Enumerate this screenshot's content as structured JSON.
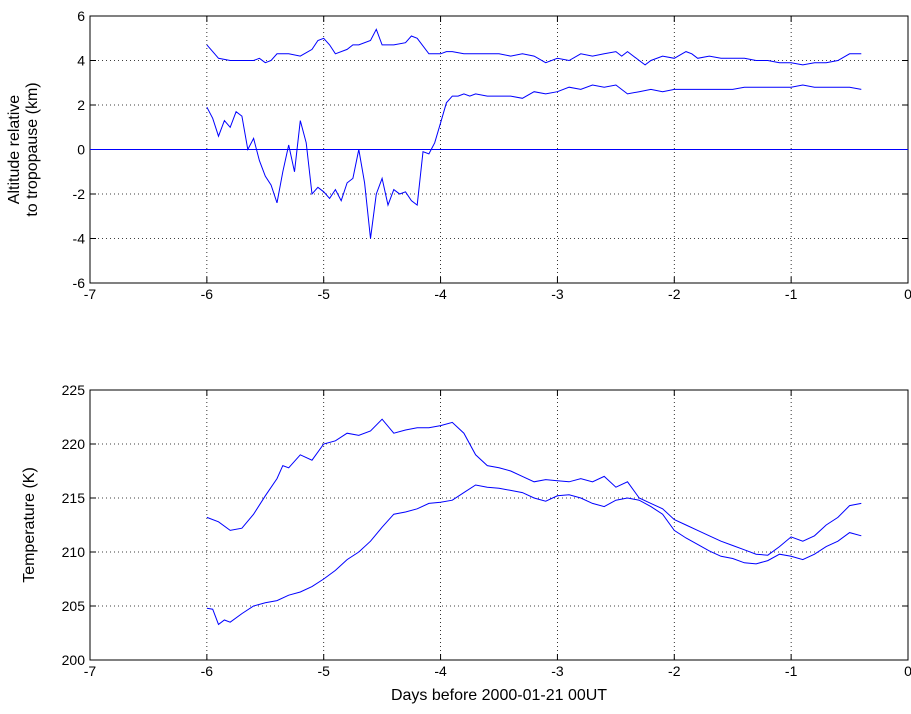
{
  "chart_data": [
    {
      "type": "line",
      "title": "",
      "xlabel": "",
      "ylabel": [
        "Altitude relative",
        "to tropopause (km)"
      ],
      "xlim": [
        -7,
        0
      ],
      "ylim": [
        -6,
        6
      ],
      "xticks": [
        -7,
        -6,
        -5,
        -4,
        -3,
        -2,
        -1,
        0
      ],
      "yticks": [
        -6,
        -4,
        -2,
        0,
        2,
        4,
        6
      ],
      "xtick_labels": [
        "-7",
        "-6",
        "-5",
        "-4",
        "-3",
        "-2",
        "-1",
        "0"
      ],
      "ytick_labels": [
        "-6",
        "-4",
        "-2",
        "0",
        "2",
        "4",
        "6"
      ],
      "grid": true,
      "line_color": "#0000ff",
      "series": [
        {
          "x": [
            -6.0,
            -5.95,
            -5.9,
            -5.8,
            -5.7,
            -5.6,
            -5.55,
            -5.5,
            -5.45,
            -5.4,
            -5.3,
            -5.2,
            -5.1,
            -5.05,
            -5.0,
            -4.95,
            -4.9,
            -4.8,
            -4.75,
            -4.7,
            -4.6,
            -4.55,
            -4.5,
            -4.45,
            -4.4,
            -4.3,
            -4.25,
            -4.2,
            -4.1,
            -4.0,
            -3.95,
            -3.9,
            -3.8,
            -3.7,
            -3.6,
            -3.5,
            -3.4,
            -3.3,
            -3.2,
            -3.1,
            -3.0,
            -2.9,
            -2.8,
            -2.7,
            -2.6,
            -2.5,
            -2.45,
            -2.4,
            -2.3,
            -2.25,
            -2.2,
            -2.1,
            -2.0,
            -1.9,
            -1.85,
            -1.8,
            -1.7,
            -1.6,
            -1.5,
            -1.4,
            -1.3,
            -1.2,
            -1.1,
            -1.0,
            -0.9,
            -0.8,
            -0.7,
            -0.6,
            -0.5,
            -0.45,
            -0.4
          ],
          "y": [
            4.7,
            4.4,
            4.1,
            4.0,
            4.0,
            4.0,
            4.1,
            3.9,
            4.0,
            4.3,
            4.3,
            4.2,
            4.5,
            4.9,
            5.0,
            4.7,
            4.3,
            4.5,
            4.7,
            4.7,
            4.9,
            5.4,
            4.7,
            4.7,
            4.7,
            4.8,
            5.1,
            5.0,
            4.3,
            4.3,
            4.4,
            4.4,
            4.3,
            4.3,
            4.3,
            4.3,
            4.2,
            4.3,
            4.2,
            3.9,
            4.1,
            4.0,
            4.3,
            4.2,
            4.3,
            4.4,
            4.2,
            4.4,
            4.0,
            3.8,
            4.0,
            4.2,
            4.1,
            4.4,
            4.3,
            4.1,
            4.2,
            4.1,
            4.1,
            4.1,
            4.0,
            4.0,
            3.9,
            3.9,
            3.8,
            3.9,
            3.9,
            4.0,
            4.3,
            4.3,
            4.3
          ]
        },
        {
          "x": [
            -6.0,
            -5.95,
            -5.9,
            -5.85,
            -5.8,
            -5.75,
            -5.7,
            -5.65,
            -5.6,
            -5.55,
            -5.5,
            -5.45,
            -5.4,
            -5.35,
            -5.3,
            -5.25,
            -5.2,
            -5.15,
            -5.1,
            -5.05,
            -5.0,
            -4.95,
            -4.9,
            -4.85,
            -4.8,
            -4.75,
            -4.7,
            -4.65,
            -4.6,
            -4.55,
            -4.5,
            -4.45,
            -4.4,
            -4.35,
            -4.3,
            -4.25,
            -4.2,
            -4.15,
            -4.1,
            -4.05,
            -4.0,
            -3.95,
            -3.9,
            -3.85,
            -3.8,
            -3.75,
            -3.7,
            -3.6,
            -3.5,
            -3.4,
            -3.3,
            -3.2,
            -3.1,
            -3.0,
            -2.9,
            -2.8,
            -2.7,
            -2.6,
            -2.5,
            -2.4,
            -2.3,
            -2.2,
            -2.1,
            -2.0,
            -1.9,
            -1.8,
            -1.7,
            -1.6,
            -1.5,
            -1.4,
            -1.3,
            -1.2,
            -1.1,
            -1.0,
            -0.9,
            -0.8,
            -0.7,
            -0.6,
            -0.5,
            -0.4
          ],
          "y": [
            1.9,
            1.4,
            0.6,
            1.3,
            1.0,
            1.7,
            1.5,
            0.0,
            0.5,
            -0.5,
            -1.2,
            -1.6,
            -2.4,
            -1.0,
            0.2,
            -1.0,
            1.3,
            0.3,
            -2.0,
            -1.7,
            -1.9,
            -2.2,
            -1.8,
            -2.3,
            -1.5,
            -1.3,
            0.0,
            -1.5,
            -4.0,
            -2.0,
            -1.3,
            -2.5,
            -1.8,
            -2.0,
            -1.9,
            -2.3,
            -2.5,
            -0.1,
            -0.2,
            0.3,
            1.2,
            2.1,
            2.4,
            2.4,
            2.5,
            2.4,
            2.5,
            2.4,
            2.4,
            2.4,
            2.3,
            2.6,
            2.5,
            2.6,
            2.8,
            2.7,
            2.9,
            2.8,
            2.9,
            2.5,
            2.6,
            2.7,
            2.6,
            2.7,
            2.7,
            2.7,
            2.7,
            2.7,
            2.7,
            2.8,
            2.8,
            2.8,
            2.8,
            2.8,
            2.9,
            2.8,
            2.8,
            2.8,
            2.8,
            2.7
          ]
        },
        {
          "x": [
            -7,
            0
          ],
          "y": [
            0,
            0
          ]
        }
      ]
    },
    {
      "type": "line",
      "title": "",
      "xlabel": "Days before 2000-01-21 00UT",
      "ylabel": [
        "Temperature (K)"
      ],
      "xlim": [
        -7,
        0
      ],
      "ylim": [
        200,
        225
      ],
      "xticks": [
        -7,
        -6,
        -5,
        -4,
        -3,
        -2,
        -1,
        0
      ],
      "yticks": [
        200,
        205,
        210,
        215,
        220,
        225
      ],
      "xtick_labels": [
        "-7",
        "-6",
        "-5",
        "-4",
        "-3",
        "-2",
        "-1",
        "0"
      ],
      "ytick_labels": [
        "200",
        "205",
        "210",
        "215",
        "220",
        "225"
      ],
      "grid": true,
      "line_color": "#0000ff",
      "series": [
        {
          "x": [
            -6.0,
            -5.9,
            -5.8,
            -5.7,
            -5.6,
            -5.5,
            -5.4,
            -5.35,
            -5.3,
            -5.2,
            -5.1,
            -5.0,
            -4.9,
            -4.8,
            -4.7,
            -4.6,
            -4.5,
            -4.4,
            -4.3,
            -4.2,
            -4.1,
            -4.0,
            -3.9,
            -3.8,
            -3.7,
            -3.6,
            -3.5,
            -3.4,
            -3.3,
            -3.2,
            -3.1,
            -3.0,
            -2.9,
            -2.8,
            -2.7,
            -2.6,
            -2.5,
            -2.4,
            -2.3,
            -2.2,
            -2.1,
            -2.0,
            -1.9,
            -1.8,
            -1.7,
            -1.6,
            -1.5,
            -1.4,
            -1.3,
            -1.2,
            -1.1,
            -1.0,
            -0.9,
            -0.8,
            -0.7,
            -0.6,
            -0.5,
            -0.4
          ],
          "y": [
            213.2,
            212.8,
            212.0,
            212.2,
            213.5,
            215.2,
            216.8,
            218.0,
            217.8,
            219.0,
            218.5,
            220.0,
            220.3,
            221.0,
            220.8,
            221.2,
            222.3,
            221.0,
            221.3,
            221.5,
            221.5,
            221.7,
            222.0,
            221.0,
            219.0,
            218.0,
            217.8,
            217.5,
            217.0,
            216.5,
            216.7,
            216.6,
            216.5,
            216.8,
            216.5,
            217.0,
            216.0,
            216.5,
            215.0,
            214.5,
            214.0,
            213.0,
            212.5,
            212.0,
            211.5,
            211.0,
            210.6,
            210.2,
            209.8,
            209.7,
            210.5,
            211.4,
            211.0,
            211.5,
            212.5,
            213.2,
            214.3,
            214.5
          ]
        },
        {
          "x": [
            -6.0,
            -5.95,
            -5.9,
            -5.85,
            -5.8,
            -5.7,
            -5.6,
            -5.5,
            -5.4,
            -5.3,
            -5.2,
            -5.1,
            -5.0,
            -4.9,
            -4.8,
            -4.7,
            -4.6,
            -4.5,
            -4.4,
            -4.3,
            -4.2,
            -4.1,
            -4.0,
            -3.9,
            -3.8,
            -3.7,
            -3.6,
            -3.5,
            -3.4,
            -3.3,
            -3.2,
            -3.1,
            -3.0,
            -2.9,
            -2.8,
            -2.7,
            -2.6,
            -2.5,
            -2.4,
            -2.3,
            -2.2,
            -2.1,
            -2.0,
            -1.9,
            -1.8,
            -1.7,
            -1.6,
            -1.5,
            -1.4,
            -1.3,
            -1.2,
            -1.1,
            -1.0,
            -0.9,
            -0.8,
            -0.7,
            -0.6,
            -0.5,
            -0.4
          ],
          "y": [
            204.8,
            204.7,
            203.3,
            203.7,
            203.5,
            204.3,
            205.0,
            205.3,
            205.5,
            206.0,
            206.3,
            206.8,
            207.5,
            208.3,
            209.3,
            210.0,
            211.0,
            212.3,
            213.5,
            213.7,
            214.0,
            214.5,
            214.6,
            214.8,
            215.5,
            216.2,
            216.0,
            215.9,
            215.7,
            215.5,
            215.0,
            214.7,
            215.2,
            215.3,
            215.0,
            214.5,
            214.2,
            214.8,
            215.0,
            214.8,
            214.2,
            213.5,
            212.0,
            211.3,
            210.7,
            210.1,
            209.6,
            209.4,
            209.0,
            208.9,
            209.2,
            209.8,
            209.6,
            209.3,
            209.8,
            210.5,
            211.0,
            211.8,
            211.5
          ]
        }
      ]
    }
  ]
}
